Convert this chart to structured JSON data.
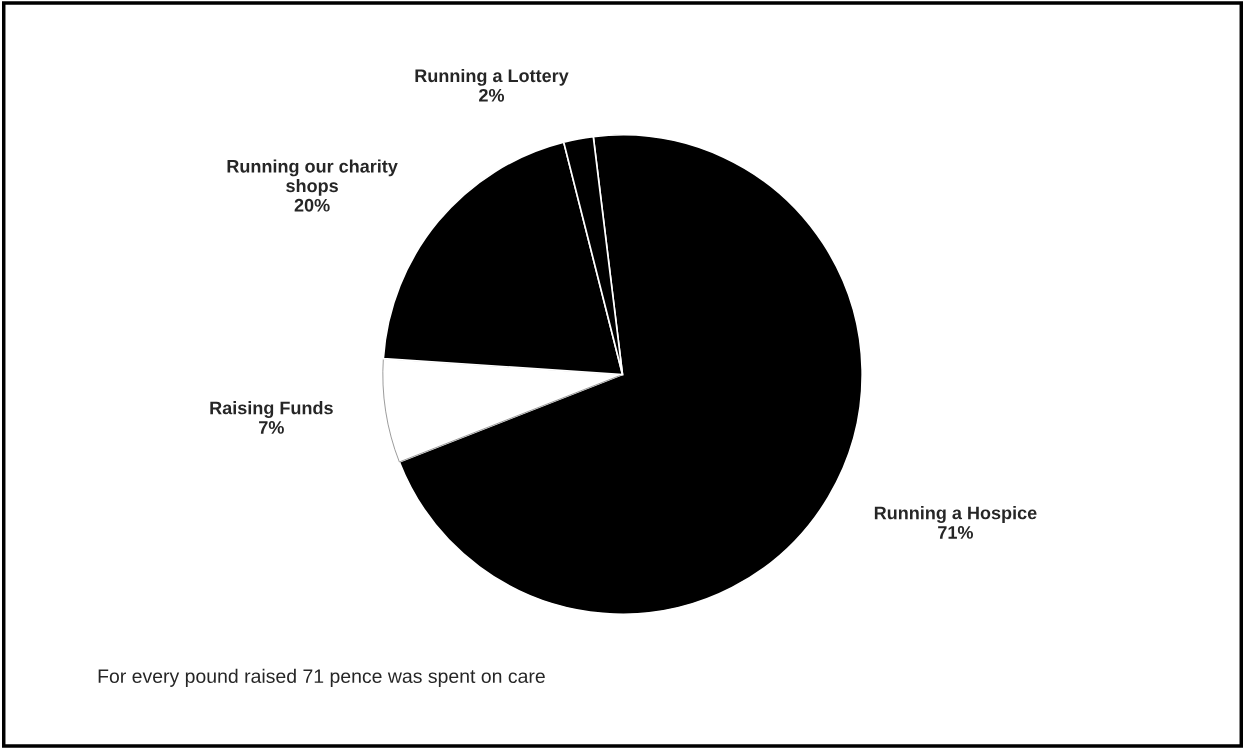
{
  "chart_data": {
    "type": "pie",
    "categories": [
      "Running a Hospice",
      "Raising Funds",
      "Running our charity\nshops",
      "Running a Lottery"
    ],
    "values": [
      71,
      7,
      20,
      2
    ],
    "value_labels": [
      "71%",
      "7%",
      "20%",
      "2%"
    ],
    "colors": [
      "#000000",
      "#ffffff",
      "#000000",
      "#000000"
    ],
    "annotations": [
      "For every pound raised 71 pence was spent on care"
    ]
  }
}
